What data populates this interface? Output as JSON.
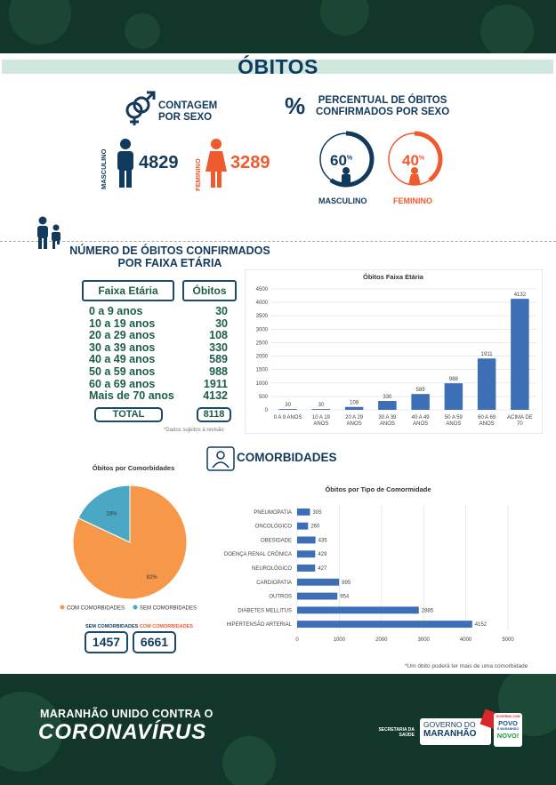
{
  "page_title": "ÓBITOS",
  "sex_count": {
    "heading_line1": "CONTAGEM",
    "heading_line2": "POR SEXO",
    "male_label": "MASCULINO",
    "male_value": "4829",
    "female_label": "FEMININO",
    "female_value": "3289"
  },
  "sex_percent": {
    "symbol": "%",
    "heading_line1": "PERCENTUAL DE ÓBITOS",
    "heading_line2": "CONFIRMADOS POR SEXO",
    "male_value": "60",
    "male_unit": "%",
    "male_label": "MASCULINO",
    "male_fraction": 0.6,
    "female_value": "40",
    "female_unit": "%",
    "female_label": "FEMININO",
    "female_fraction": 0.4
  },
  "age": {
    "heading_line1": "NÚMERO DE ÓBITOS CONFIRMADOS",
    "heading_line2": "POR FAIXA ETÁRIA",
    "col1": "Faixa Etária",
    "col2": "Óbitos",
    "rows": [
      {
        "label": "0 a 9 anos",
        "value": "30"
      },
      {
        "label": "10 a 19 anos",
        "value": "30"
      },
      {
        "label": "20 a 29 anos",
        "value": "108"
      },
      {
        "label": "30 a 39 anos",
        "value": "330"
      },
      {
        "label": "40 a 49 anos",
        "value": "589"
      },
      {
        "label": "50 a 59 anos",
        "value": "988"
      },
      {
        "label": "60 a 69 anos",
        "value": "1911"
      },
      {
        "label": "Mais de 70 anos",
        "value": "4132"
      }
    ],
    "total_label": "TOTAL",
    "total_value": "8118",
    "note": "*Dados sujeitos à revisão"
  },
  "comorb": {
    "heading": "COMORBIDADES",
    "with_label": "COM COMORBIDADES",
    "without_label": "SEM COMORBIDADES",
    "without_value": "1457",
    "with_value": "6661",
    "note": "*Um óbito poderá ter mais de uma comorbidade"
  },
  "footer": {
    "line1": "MARANHÃO UNIDO CONTRA O",
    "line2": "CORONAVÍRUS",
    "secretaria": "SECRETARIA DA",
    "saude": "SAÚDE",
    "gov1": "GOVERNO DO",
    "gov2": "MARANHÃO",
    "slogan1": "GOVERNO COM",
    "slogan2": "POVO",
    "slogan3": "É MARANHÃO",
    "slogan4": "NOVO!"
  },
  "colors": {
    "navy": "#123a5c",
    "orange": "#ef5a2e",
    "teal": "#1d5d4c",
    "bar_blue": "#3d6fb6",
    "pie_orange": "#f6974a",
    "pie_teal": "#4aa8c4",
    "dark_green": "#12372a"
  },
  "chart_data": [
    {
      "type": "bar",
      "title": "Óbitos Faixa Etária",
      "categories": [
        "0 A 9 ANOS",
        "10 A 19 ANOS",
        "20 A 29 ANOS",
        "30 A 39 ANOS",
        "40 A 49 ANOS",
        "50 A 59 ANOS",
        "60 A 69 ANOS",
        "ACIMA DE 70"
      ],
      "values": [
        30,
        30,
        108,
        330,
        589,
        988,
        1911,
        4132
      ],
      "ylim": [
        0,
        4500
      ],
      "yticks": [
        0,
        500,
        1000,
        1500,
        2000,
        2500,
        3000,
        3500,
        4000,
        4500
      ],
      "grid": true
    },
    {
      "type": "pie",
      "title": "Óbitos por Comorbidades",
      "labels": [
        "COM COMORBIDADES",
        "SEM COMORBIDADES"
      ],
      "values": [
        82,
        18
      ],
      "value_labels": [
        "82%",
        "18%"
      ],
      "legend": "bottom"
    },
    {
      "type": "bar",
      "orientation": "horizontal",
      "title": "Óbitos por Tipo de Comormidade",
      "categories": [
        "PNEUMOPATIA",
        "ONCOLÓGICO",
        "OBESIDADE",
        "DOENÇA RENAL CRÔNICA",
        "NEUROLÓGICO",
        "CARDIOPATIA",
        "OUTROS",
        "DIABETES MELLITUS",
        "HIPERTENSÃO ARTERIAL"
      ],
      "values": [
        305,
        260,
        435,
        429,
        427,
        995,
        954,
        2885,
        4152
      ],
      "xlim": [
        0,
        5000
      ],
      "xticks": [
        0,
        1000,
        2000,
        3000,
        4000,
        5000
      ],
      "grid": true
    }
  ]
}
